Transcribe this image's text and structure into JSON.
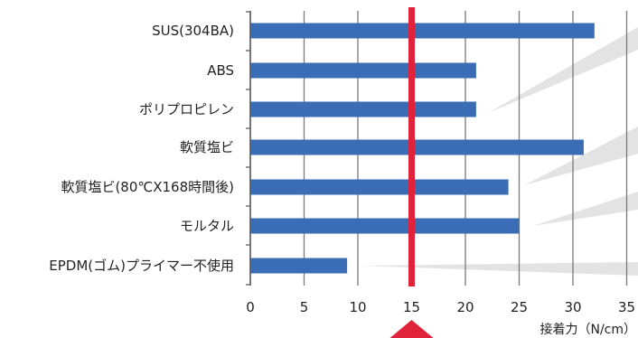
{
  "chart_data": {
    "type": "bar",
    "orientation": "horizontal",
    "categories": [
      "SUS(304BA)",
      "ABS",
      "ポリプロピレン",
      "軟質塩ビ",
      "軟質塩ビ(80℃X168時間後)",
      "モルタル",
      "EPDM(ゴム)プライマー不使用"
    ],
    "values": [
      32,
      21,
      21,
      31,
      24,
      25,
      9
    ],
    "xlabel": "接着力（N/cm）",
    "ylabel": "",
    "title": "",
    "xlim": [
      0,
      35
    ],
    "x_ticks": [
      "0",
      "5",
      "10",
      "15",
      "20",
      "25",
      "30",
      "35"
    ],
    "reference_line": {
      "value": 15,
      "color": "#e0233a"
    },
    "grid": "vertical",
    "bar_color": "#3a6db5"
  }
}
